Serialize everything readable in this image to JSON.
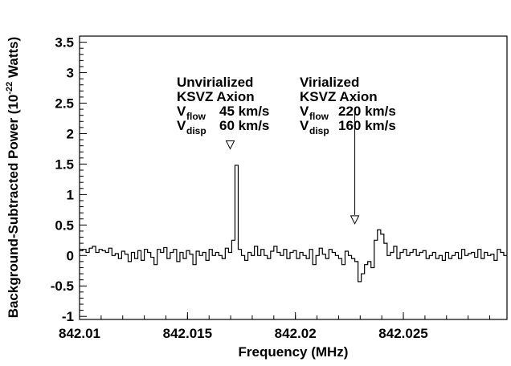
{
  "chart_data": {
    "type": "line",
    "style": "step-histogram",
    "xlabel": "Frequency (MHz)",
    "ylabel_main": "Background-Subtracted Power (10",
    "ylabel_exp": "-22",
    "ylabel_unit": " Watts)",
    "xlim": [
      842.01,
      842.0298
    ],
    "ylim": [
      -1.05,
      3.6
    ],
    "x_ticks": [
      842.01,
      842.015,
      842.02,
      842.025
    ],
    "x_tick_labels": [
      "842.01",
      "842.015",
      "842.02",
      "842.025"
    ],
    "y_ticks": [
      -1,
      -0.5,
      0,
      0.5,
      1,
      1.5,
      2,
      2.5,
      3,
      3.5
    ],
    "y_tick_labels": [
      "-1",
      "-0.5",
      "0",
      "0.5",
      "1",
      "1.5",
      "2",
      "2.5",
      "3",
      "3.5"
    ],
    "grid": false,
    "line_color": "#000000",
    "series": [
      {
        "x_start": 842.01,
        "bin_width": 0.00015,
        "values": [
          0.08,
          0.1,
          0.05,
          0.12,
          0.15,
          0.05,
          0.1,
          0.08,
          0.05,
          0.12,
          0.0,
          0.03,
          -0.05,
          0.07,
          0.02,
          -0.1,
          0.05,
          -0.05,
          0.08,
          -0.08,
          0.1,
          0.05,
          -0.03,
          -0.15,
          0.1,
          0.05,
          0.13,
          -0.05,
          0.05,
          0.1,
          -0.1,
          0.05,
          -0.05,
          0.08,
          0.02,
          -0.15,
          0.07,
          0.0,
          0.05,
          -0.08,
          0.1,
          0.0,
          0.05,
          0.0,
          -0.05,
          0.12,
          0.05,
          0.25,
          1.48,
          0.1,
          0.0,
          -0.08,
          0.05,
          0.0,
          0.15,
          0.0,
          0.1,
          0.0,
          -0.05,
          0.07,
          0.15,
          0.05,
          0.0,
          0.1,
          -0.05,
          0.05,
          0.08,
          -0.05,
          0.05,
          0.0,
          -0.05,
          0.1,
          -0.15,
          0.0,
          0.12,
          0.02,
          -0.05,
          0.1,
          0.05,
          0.0,
          -0.05,
          -0.15,
          0.07,
          0.0,
          -0.05,
          -0.1,
          -0.43,
          -0.3,
          -0.15,
          -0.1,
          -0.2,
          0.25,
          0.42,
          0.35,
          0.2,
          0.0,
          0.05,
          0.15,
          -0.05,
          0.05,
          0.1,
          0.0,
          0.05,
          0.1,
          0.0,
          0.05,
          0.08,
          -0.05,
          0.0,
          0.05,
          -0.05,
          0.0,
          -0.08,
          0.05,
          -0.05,
          0.0,
          0.05,
          -0.05,
          0.1,
          0.0,
          0.03,
          0.05,
          -0.03,
          0.1,
          -0.05,
          0.05,
          0.0,
          0.02,
          -0.08,
          0.1,
          0.05,
          0.0
        ]
      }
    ],
    "annotations": [
      {
        "marker_x": 842.01698,
        "marker_y": 1.75,
        "lines": [
          {
            "text": "Unvirialized"
          },
          {
            "text": "KSVZ Axion"
          },
          {
            "main": "V",
            "sub": "flow",
            "value": "45 km/s"
          },
          {
            "main": "V",
            "sub": "disp",
            "value": "60 km/s"
          }
        ]
      },
      {
        "marker_x": 842.02275,
        "marker_y": 0.52,
        "arrow_from_y": 2.4,
        "lines": [
          {
            "text": "Virialized"
          },
          {
            "text": "KSVZ Axion"
          },
          {
            "main": "V",
            "sub": "flow",
            "value": "220 km/s"
          },
          {
            "main": "V",
            "sub": "disp",
            "value": "160 km/s"
          }
        ]
      }
    ]
  }
}
